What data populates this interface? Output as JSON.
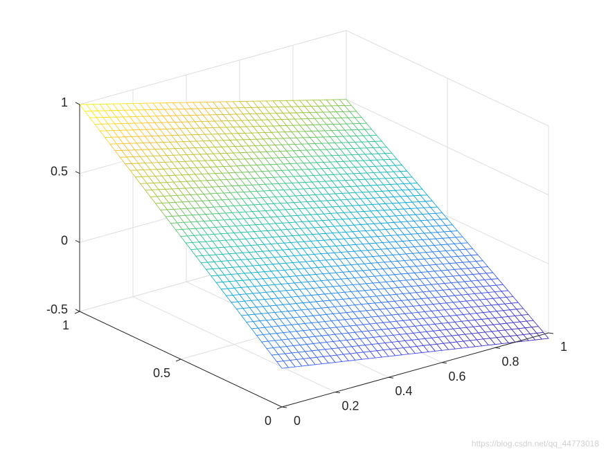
{
  "chart_data": {
    "type": "surface3d",
    "colormap": "parula",
    "grid": true,
    "mesh": {
      "x_points": 41,
      "y_points": 41
    },
    "x_range": [
      0,
      1
    ],
    "y_range": [
      0,
      1
    ],
    "z_range": [
      -0.5,
      1
    ],
    "surface_corners": [
      {
        "x": 0,
        "y": 0,
        "z": -0.22
      },
      {
        "x": 1,
        "y": 0,
        "z": -0.54
      },
      {
        "x": 0,
        "y": 1,
        "z": 1.0
      },
      {
        "x": 1,
        "y": 1,
        "z": 0.5
      }
    ],
    "x_ticks": [
      "0",
      "0.2",
      "0.4",
      "0.6",
      "0.8",
      "1"
    ],
    "x_tick_values": [
      0,
      0.2,
      0.4,
      0.6,
      0.8,
      1
    ],
    "y_ticks": [
      "0",
      "0.5",
      "1"
    ],
    "y_tick_values": [
      0,
      0.5,
      1
    ],
    "z_ticks": [
      "-0.5",
      "0",
      "0.5",
      "1"
    ],
    "z_tick_values": [
      -0.5,
      0,
      0.5,
      1
    ]
  },
  "watermark": "https://blog.csdn.net/qq_44773018"
}
